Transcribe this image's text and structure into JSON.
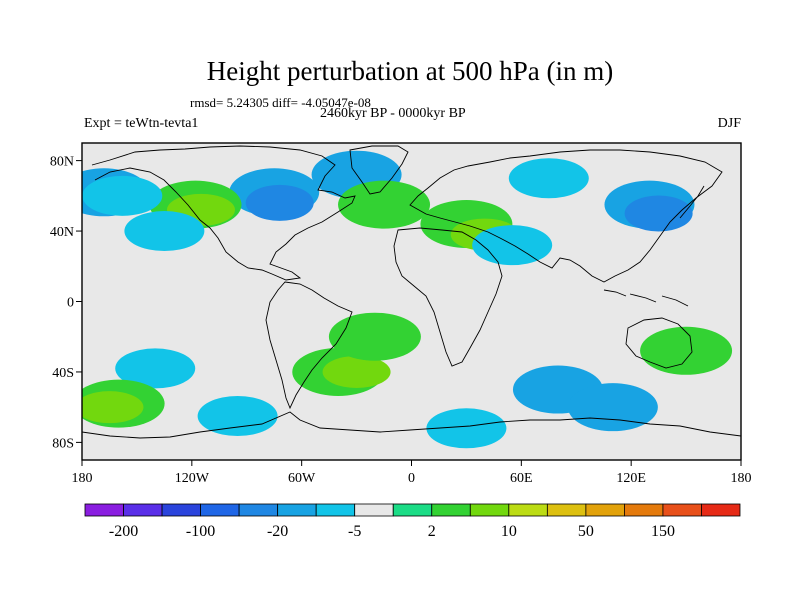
{
  "chart_data": {
    "type": "heatmap",
    "title": "Height perturbation at 500 hPa (in m)",
    "stats_line": "rmsd= 5.24305  diff= -4.05047e-08",
    "period": "2460kyr BP - 0000kyr BP",
    "experiment": "Expt = teWtn-tevta1",
    "season": "DJF",
    "x_ticks": [
      "180",
      "120W",
      "60W",
      "0",
      "60E",
      "120E",
      "180"
    ],
    "x_tick_values": [
      -180,
      -120,
      -60,
      0,
      60,
      120,
      180
    ],
    "y_ticks": [
      "80N",
      "40N",
      "0",
      "40S",
      "80S"
    ],
    "y_tick_values": [
      80,
      40,
      0,
      -40,
      -80
    ],
    "xlim": [
      -180,
      180
    ],
    "ylim": [
      -90,
      90
    ],
    "colorbar": {
      "labels": [
        "-200",
        "-100",
        "-20",
        "-5",
        "2",
        "10",
        "50",
        "150"
      ],
      "label_box_index": [
        1,
        3,
        5,
        7,
        9,
        11,
        13,
        15
      ],
      "colors": [
        "#8a1ee0",
        "#5a2fe8",
        "#2a44dc",
        "#1f66e6",
        "#1f87e3",
        "#18a3e3",
        "#12c4e8",
        "#e8e8e8",
        "#1bdc86",
        "#33d233",
        "#72d80e",
        "#bcdc14",
        "#ddc010",
        "#e2a20b",
        "#e47a0c",
        "#e8501a",
        "#e62a16"
      ]
    },
    "fields": [
      {
        "lon": -75,
        "lat": 62,
        "value": -8,
        "level": 5
      },
      {
        "lon": -72,
        "lat": 56,
        "value": -12,
        "level": 4
      },
      {
        "lon": -30,
        "lat": 72,
        "value": -8,
        "level": 5
      },
      {
        "lon": -20,
        "lat": 52,
        "value": 12,
        "level": 11
      },
      {
        "lon": -15,
        "lat": 55,
        "value": 4,
        "level": 9
      },
      {
        "lon": -118,
        "lat": 55,
        "value": 3,
        "level": 9
      },
      {
        "lon": -115,
        "lat": 52,
        "value": 6,
        "level": 10
      },
      {
        "lon": -168,
        "lat": 62,
        "value": -6,
        "level": 5
      },
      {
        "lon": -158,
        "lat": 60,
        "value": -3,
        "level": 6
      },
      {
        "lon": 75,
        "lat": 70,
        "value": -4,
        "level": 6
      },
      {
        "lon": 130,
        "lat": 55,
        "value": -8,
        "level": 5
      },
      {
        "lon": 135,
        "lat": 50,
        "value": -12,
        "level": 4
      },
      {
        "lon": 30,
        "lat": 44,
        "value": 3,
        "level": 9
      },
      {
        "lon": 40,
        "lat": 38,
        "value": 5,
        "level": 10
      },
      {
        "lon": 55,
        "lat": 32,
        "value": -3,
        "level": 6
      },
      {
        "lon": -135,
        "lat": 40,
        "value": -3,
        "level": 6
      },
      {
        "lon": -140,
        "lat": -38,
        "value": -4,
        "level": 6
      },
      {
        "lon": -160,
        "lat": -58,
        "value": 3,
        "level": 9
      },
      {
        "lon": -165,
        "lat": -60,
        "value": 7,
        "level": 10
      },
      {
        "lon": -40,
        "lat": -40,
        "value": 4,
        "level": 9
      },
      {
        "lon": -30,
        "lat": -40,
        "value": 7,
        "level": 10
      },
      {
        "lon": -20,
        "lat": -20,
        "value": 3,
        "level": 9
      },
      {
        "lon": -95,
        "lat": -65,
        "value": -4,
        "level": 6
      },
      {
        "lon": 80,
        "lat": -50,
        "value": -5,
        "level": 5
      },
      {
        "lon": 110,
        "lat": -60,
        "value": -8,
        "level": 5
      },
      {
        "lon": 30,
        "lat": -72,
        "value": -4,
        "level": 6
      },
      {
        "lon": 150,
        "lat": -28,
        "value": 4,
        "level": 9
      }
    ]
  }
}
